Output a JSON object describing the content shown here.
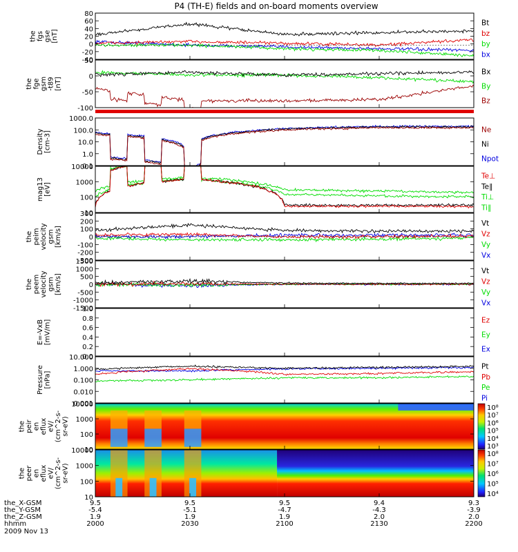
{
  "title": "P4 (TH-E) fields and on-board moments overview",
  "colors": {
    "black": "#000000",
    "red": "#e00000",
    "green": "#00dd00",
    "blue": "#0000e0",
    "darkred": "#9b0000",
    "fill_red": "#e00000"
  },
  "panels": [
    {
      "id": "fgs",
      "ylabel": [
        "the",
        "fgs",
        "gse",
        "[nT]"
      ],
      "ylim": [
        -40,
        90
      ],
      "ticks": [
        "80",
        "60",
        "40",
        "20",
        "0",
        "-20",
        "-40"
      ],
      "legend": [
        "Bt",
        "bz",
        "by",
        "bx"
      ]
    },
    {
      "id": "fge",
      "ylabel": [
        "the",
        "fge",
        "gsm",
        "-t89",
        "[nT]"
      ],
      "ylim": [
        -120,
        55
      ],
      "ticks": [
        "50",
        "0",
        "-50",
        "-100"
      ],
      "legend": [
        "Bx",
        "By",
        "Bz"
      ]
    },
    {
      "id": "density",
      "ylabel": [
        "Density",
        "[cm-3]"
      ],
      "scale": "log",
      "ylim": [
        0.1,
        1000
      ],
      "ticks": [
        "1000.0",
        "100.0",
        "10.0",
        "1.0",
        "0.1"
      ],
      "legend": [
        "Ne",
        "Ni",
        "Npot"
      ]
    },
    {
      "id": "temp",
      "ylabel": [
        "mag13",
        "[eV]"
      ],
      "scale": "log",
      "ylim": [
        10,
        10000
      ],
      "ticks": [
        "10000",
        "1000",
        "100",
        "10"
      ],
      "legend": [
        "Te⊥",
        "Te∥",
        "Ti⊥",
        "Ti∥"
      ]
    },
    {
      "id": "peim_vel",
      "ylabel": [
        "the",
        "peim",
        "velocity",
        "gsm",
        "[km/s]"
      ],
      "ylim": [
        -300,
        300
      ],
      "ticks": [
        "300",
        "200",
        "100",
        "0",
        "-100",
        "-200",
        "-300"
      ],
      "legend": [
        "Vt",
        "Vz",
        "Vy",
        "Vx"
      ]
    },
    {
      "id": "peem_vel",
      "ylabel": [
        "the",
        "peem",
        "velocity",
        "gsm",
        "[km/s]"
      ],
      "ylim": [
        -1500,
        1500
      ],
      "ticks": [
        "1500",
        "1000",
        "500",
        "0",
        "-500",
        "-1000",
        "-1500"
      ],
      "legend": [
        "Vt",
        "Vz",
        "Vy",
        "Vx"
      ]
    },
    {
      "id": "efield",
      "ylabel": [
        "E=-VxB",
        "[mV/m]"
      ],
      "ylim": [
        0.0,
        1.0
      ],
      "ticks": [
        "1.0",
        "0.8",
        "0.6",
        "0.4",
        "0.2",
        "0.0"
      ],
      "legend": [
        "Ez",
        "Ey",
        "Ex"
      ]
    },
    {
      "id": "pressure",
      "ylabel": [
        "Pressure",
        "[nPa]"
      ],
      "scale": "log",
      "ylim": [
        0.001,
        10
      ],
      "ticks": [
        "10.000",
        "1.000",
        "0.100",
        "0.010",
        "0.001"
      ],
      "legend": [
        "Pt",
        "Pb",
        "Pe",
        "Pi"
      ]
    },
    {
      "id": "peir",
      "ylabel": [
        "the",
        "peir",
        "en",
        "eflux",
        "eV/",
        "(cm^2-s-",
        "sr-eV)"
      ],
      "scale": "log",
      "ylim": [
        10,
        20000
      ],
      "ticks": [
        "10000",
        "1000",
        "100",
        "10"
      ],
      "colorbar": [
        "10⁸",
        "10⁷",
        "10⁶",
        "10⁵",
        "10⁴",
        "10³"
      ]
    },
    {
      "id": "peer",
      "ylabel": [
        "the",
        "peer",
        "en",
        "eflux",
        "eV/",
        "(cm^2-s-",
        "sr-eV)"
      ],
      "scale": "log",
      "ylim": [
        10,
        20000
      ],
      "ticks": [
        "10000",
        "1000",
        "100",
        "10"
      ],
      "colorbar": [
        "10⁸",
        "10⁷",
        "10⁶",
        "10⁵",
        "10⁴"
      ]
    }
  ],
  "footer": {
    "row_labels": [
      "the_X-GSM",
      "the_Y-GSM",
      "the_Z-GSM",
      "hhmm",
      "2009 Nov 13"
    ],
    "columns": [
      {
        "x": "9.5",
        "y": "-5.4",
        "z": "1.9",
        "t": "2000"
      },
      {
        "x": "9.5",
        "y": "-5.1",
        "z": "1.9",
        "t": "2030"
      },
      {
        "x": "9.5",
        "y": "-4.7",
        "z": "1.9",
        "t": "2100"
      },
      {
        "x": "9.4",
        "y": "-4.3",
        "z": "2.0",
        "t": "2130"
      },
      {
        "x": "9.3",
        "y": "-3.9",
        "z": "2.0",
        "t": "2200"
      }
    ]
  },
  "chart_data": {
    "type": "line",
    "title": "P4 (TH-E) fields and on-board moments overview",
    "x": [
      "2000",
      "2030",
      "2100",
      "2130",
      "2200"
    ],
    "xlabel": "hhmm",
    "date": "2009 Nov 13",
    "panels": [
      {
        "name": "the fgs gse [nT]",
        "series": [
          {
            "name": "Bt",
            "values": [
              30,
              60,
              30,
              35,
              40
            ]
          },
          {
            "name": "bz",
            "values": [
              5,
              10,
              5,
              0,
              15
            ]
          },
          {
            "name": "by",
            "values": [
              0,
              0,
              -10,
              -15,
              -30
            ]
          },
          {
            "name": "bx",
            "values": [
              10,
              0,
              -5,
              -10,
              -15
            ]
          }
        ]
      },
      {
        "name": "the fge gsm -t89 [nT]",
        "series": [
          {
            "name": "Bx",
            "values": [
              0,
              10,
              0,
              5,
              10
            ]
          },
          {
            "name": "By",
            "values": [
              10,
              0,
              0,
              -10,
              -25
            ]
          },
          {
            "name": "Bz",
            "values": [
              -50,
              -95,
              -95,
              -90,
              -40
            ]
          }
        ]
      },
      {
        "name": "Density [cm-3]",
        "series": [
          {
            "name": "Ne",
            "values": [
              40,
              0.5,
              100,
              150,
              150
            ]
          },
          {
            "name": "Ni",
            "values": [
              50,
              0.6,
              120,
              180,
              180
            ]
          },
          {
            "name": "Npot",
            "values": [
              60,
              0.6,
              130,
              200,
              200
            ]
          }
        ]
      },
      {
        "name": "mag13 [eV]",
        "series": [
          {
            "name": "Te⊥",
            "values": [
              25,
              1500,
              25,
              25,
              25
            ]
          },
          {
            "name": "Te∥",
            "values": [
              30,
              1500,
              30,
              30,
              30
            ]
          },
          {
            "name": "Ti⊥",
            "values": [
              250,
              2000,
              300,
              250,
              200
            ]
          },
          {
            "name": "Ti∥",
            "values": [
              100,
              1500,
              150,
              120,
              100
            ]
          }
        ]
      },
      {
        "name": "the peim velocity gsm [km/s]",
        "series": [
          {
            "name": "Vt",
            "values": [
              80,
              150,
              80,
              70,
              70
            ]
          },
          {
            "name": "Vz",
            "values": [
              20,
              30,
              0,
              0,
              10
            ]
          },
          {
            "name": "Vy",
            "values": [
              -20,
              -40,
              -40,
              -30,
              -20
            ]
          },
          {
            "name": "Vx",
            "values": [
              0,
              0,
              20,
              20,
              20
            ]
          }
        ]
      },
      {
        "name": "the peem velocity gsm [km/s]",
        "series": [
          {
            "name": "Vt",
            "values": [
              100,
              200,
              80,
              60,
              60
            ]
          },
          {
            "name": "Vz",
            "values": [
              0,
              50,
              0,
              0,
              0
            ]
          },
          {
            "name": "Vy",
            "values": [
              0,
              -50,
              0,
              0,
              0
            ]
          },
          {
            "name": "Vx",
            "values": [
              0,
              -80,
              0,
              0,
              0
            ]
          }
        ]
      },
      {
        "name": "E=-VxB [mV/m]",
        "series": [
          {
            "name": "Ez",
            "values": []
          },
          {
            "name": "Ey",
            "values": []
          },
          {
            "name": "Ex",
            "values": []
          }
        ]
      },
      {
        "name": "Pressure [nPa]",
        "series": [
          {
            "name": "Pt",
            "values": [
              0.8,
              1.5,
              1.0,
              1.2,
              1.5
            ]
          },
          {
            "name": "Pb",
            "values": [
              0.3,
              0.9,
              0.3,
              0.35,
              0.5
            ]
          },
          {
            "name": "Pe",
            "values": [
              0.08,
              0.1,
              0.15,
              0.15,
              0.2
            ]
          },
          {
            "name": "Pi",
            "values": [
              0.6,
              0.6,
              0.9,
              1.0,
              1.2
            ]
          }
        ]
      }
    ],
    "spectrograms": [
      {
        "name": "the peir en eflux eV/(cm^2-s-sr-eV)",
        "ylim": [
          10,
          20000
        ],
        "colorbar": [
          "10⁸",
          "10⁷",
          "10⁶",
          "10⁵",
          "10⁴",
          "10³"
        ]
      },
      {
        "name": "the peer en eflux eV/(cm^2-s-sr-eV)",
        "ylim": [
          10,
          20000
        ],
        "colorbar": [
          "10⁸",
          "10⁷",
          "10⁶",
          "10⁵",
          "10⁴"
        ]
      }
    ]
  }
}
